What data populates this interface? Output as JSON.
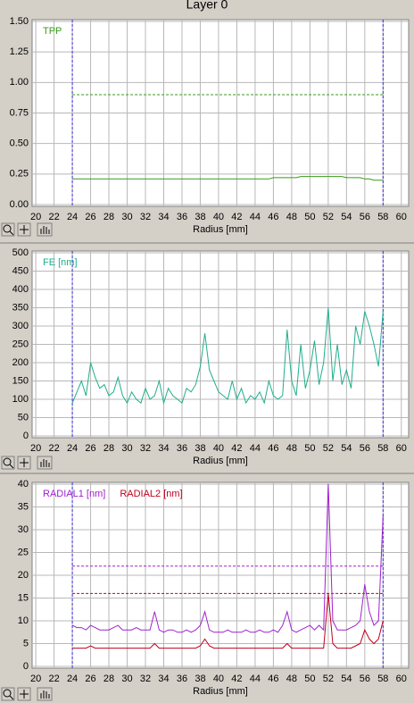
{
  "title": "Layer 0",
  "chart_data": [
    {
      "type": "line",
      "xlabel": "Radius [mm]",
      "xlim": [
        19.6,
        60.8
      ],
      "xticks": [
        20,
        22,
        24,
        26,
        28,
        30,
        32,
        34,
        36,
        38,
        40,
        42,
        44,
        46,
        48,
        50,
        52,
        54,
        56,
        58,
        60
      ],
      "ylim": [
        0,
        1.5
      ],
      "yticks": [
        {
          "value": 0,
          "label": "0.00"
        },
        {
          "value": 0.25,
          "label": "0.25"
        },
        {
          "value": 0.5,
          "label": "0.50"
        },
        {
          "value": 0.75,
          "label": "0.75"
        },
        {
          "value": 1,
          "label": "1.00"
        },
        {
          "value": 1.25,
          "label": "1.25"
        },
        {
          "value": 1.5,
          "label": "1.50"
        }
      ],
      "grid": true,
      "legend": "upper left",
      "markers": [
        24,
        58
      ],
      "marker_color": "#3c2ee0",
      "reference_lines": [
        {
          "value": 0.9,
          "color": "#3a9a1a"
        }
      ],
      "x": [
        24,
        24.5,
        25,
        25.5,
        26,
        26.5,
        27,
        27.5,
        28,
        28.5,
        29,
        29.5,
        30,
        30.5,
        31,
        31.5,
        32,
        32.5,
        33,
        33.5,
        34,
        34.5,
        35,
        35.5,
        36,
        36.5,
        37,
        37.5,
        38,
        38.5,
        39,
        39.5,
        40,
        40.5,
        41,
        41.5,
        42,
        42.5,
        43,
        43.5,
        44,
        44.5,
        45,
        45.5,
        46,
        46.5,
        47,
        47.5,
        48,
        48.5,
        49,
        49.5,
        50,
        50.5,
        51,
        51.5,
        52,
        52.5,
        53,
        53.5,
        54,
        54.5,
        55,
        55.5,
        56,
        56.5,
        57,
        57.5,
        58
      ],
      "series": [
        {
          "name": "TPP",
          "color": "#3a9a1a",
          "values": [
            0.21,
            0.21,
            0.21,
            0.21,
            0.21,
            0.21,
            0.21,
            0.21,
            0.21,
            0.21,
            0.21,
            0.21,
            0.21,
            0.21,
            0.21,
            0.21,
            0.21,
            0.21,
            0.21,
            0.21,
            0.21,
            0.21,
            0.21,
            0.21,
            0.21,
            0.21,
            0.21,
            0.21,
            0.21,
            0.21,
            0.21,
            0.21,
            0.21,
            0.21,
            0.21,
            0.21,
            0.21,
            0.21,
            0.21,
            0.21,
            0.21,
            0.21,
            0.21,
            0.21,
            0.22,
            0.22,
            0.22,
            0.22,
            0.22,
            0.22,
            0.23,
            0.23,
            0.23,
            0.23,
            0.23,
            0.23,
            0.23,
            0.23,
            0.23,
            0.23,
            0.22,
            0.22,
            0.22,
            0.22,
            0.21,
            0.21,
            0.2,
            0.2,
            0.2
          ]
        }
      ]
    },
    {
      "type": "line",
      "xlabel": "Radius [mm]",
      "xlim": [
        19.6,
        60.8
      ],
      "xticks": [
        20,
        22,
        24,
        26,
        28,
        30,
        32,
        34,
        36,
        38,
        40,
        42,
        44,
        46,
        48,
        50,
        52,
        54,
        56,
        58,
        60
      ],
      "ylim": [
        0,
        500
      ],
      "yticks": [
        0,
        50,
        100,
        150,
        200,
        250,
        300,
        350,
        400,
        450,
        500
      ],
      "grid": true,
      "legend": "upper left",
      "markers": [
        24,
        58
      ],
      "marker_color": "#3c2ee0",
      "reference_lines": [],
      "x": [
        24,
        24.5,
        25,
        25.5,
        26,
        26.5,
        27,
        27.5,
        28,
        28.5,
        29,
        29.5,
        30,
        30.5,
        31,
        31.5,
        32,
        32.5,
        33,
        33.5,
        34,
        34.5,
        35,
        35.5,
        36,
        36.5,
        37,
        37.5,
        38,
        38.5,
        39,
        39.5,
        40,
        40.5,
        41,
        41.5,
        42,
        42.5,
        43,
        43.5,
        44,
        44.5,
        45,
        45.5,
        46,
        46.5,
        47,
        47.5,
        48,
        48.5,
        49,
        49.5,
        50,
        50.5,
        51,
        51.5,
        52,
        52.5,
        53,
        53.5,
        54,
        54.5,
        55,
        55.5,
        56,
        56.5,
        57,
        57.5,
        58
      ],
      "series": [
        {
          "name": "FE [nm]",
          "color": "#1fae8c",
          "values": [
            90,
            120,
            150,
            110,
            200,
            160,
            130,
            140,
            110,
            120,
            160,
            110,
            90,
            120,
            100,
            90,
            130,
            100,
            110,
            150,
            90,
            130,
            110,
            100,
            90,
            130,
            120,
            140,
            190,
            280,
            180,
            150,
            120,
            110,
            100,
            150,
            100,
            130,
            90,
            110,
            100,
            120,
            90,
            150,
            110,
            100,
            110,
            290,
            150,
            110,
            250,
            130,
            180,
            260,
            140,
            200,
            350,
            150,
            250,
            140,
            180,
            130,
            300,
            250,
            340,
            300,
            250,
            190,
            340
          ]
        }
      ]
    },
    {
      "type": "line",
      "xlabel": "Radius [mm]",
      "xlim": [
        19.6,
        60.8
      ],
      "xticks": [
        20,
        22,
        24,
        26,
        28,
        30,
        32,
        34,
        36,
        38,
        40,
        42,
        44,
        46,
        48,
        50,
        52,
        54,
        56,
        58,
        60
      ],
      "ylim": [
        0,
        40
      ],
      "yticks": [
        0,
        5,
        10,
        15,
        20,
        25,
        30,
        35,
        40
      ],
      "grid": true,
      "legend": "upper left",
      "markers": [
        24,
        58
      ],
      "marker_color": "#3c2ee0",
      "reference_lines": [
        {
          "value": 22,
          "color": "#a020d0"
        },
        {
          "value": 16,
          "color": "#c0001e"
        }
      ],
      "x": [
        24,
        24.5,
        25,
        25.5,
        26,
        26.5,
        27,
        27.5,
        28,
        28.5,
        29,
        29.5,
        30,
        30.5,
        31,
        31.5,
        32,
        32.5,
        33,
        33.5,
        34,
        34.5,
        35,
        35.5,
        36,
        36.5,
        37,
        37.5,
        38,
        38.5,
        39,
        39.5,
        40,
        40.5,
        41,
        41.5,
        42,
        42.5,
        43,
        43.5,
        44,
        44.5,
        45,
        45.5,
        46,
        46.5,
        47,
        47.5,
        48,
        48.5,
        49,
        49.5,
        50,
        50.5,
        51,
        51.5,
        52,
        52.5,
        53,
        53.5,
        54,
        54.5,
        55,
        55.5,
        56,
        56.5,
        57,
        57.5,
        58
      ],
      "series": [
        {
          "name": "RADIAL1 [nm]",
          "color": "#a020d0",
          "values": [
            9,
            8.5,
            8.5,
            8,
            9,
            8.5,
            8,
            8,
            8,
            8.5,
            9,
            8,
            8,
            8,
            8.5,
            8,
            8,
            8,
            12,
            8,
            7.5,
            8,
            8,
            7.5,
            7.5,
            8,
            7.5,
            8,
            9,
            12,
            8,
            7.5,
            7.5,
            7.5,
            8,
            7.5,
            7.5,
            7.5,
            8,
            7.5,
            7.5,
            8,
            7.5,
            7.5,
            8,
            7.5,
            9,
            12,
            8,
            7.5,
            8,
            8.5,
            9,
            8,
            9,
            8,
            40,
            10,
            8,
            8,
            8,
            8.5,
            9,
            10,
            18,
            12,
            9,
            10,
            33
          ]
        },
        {
          "name": "RADIAL2 [nm]",
          "color": "#c0001e",
          "values": [
            4,
            4,
            4,
            4,
            4.5,
            4,
            4,
            4,
            4,
            4,
            4,
            4,
            4,
            4,
            4,
            4,
            4,
            4,
            5,
            4,
            4,
            4,
            4,
            4,
            4,
            4,
            4,
            4,
            4.5,
            6,
            4.5,
            4,
            4,
            4,
            4,
            4,
            4,
            4,
            4,
            4,
            4,
            4,
            4,
            4,
            4,
            4,
            4,
            5,
            4,
            4,
            4,
            4,
            4,
            4,
            4,
            4,
            16,
            5,
            4,
            4,
            4,
            4,
            4.5,
            5,
            8,
            6,
            5,
            6,
            10
          ]
        }
      ]
    }
  ]
}
